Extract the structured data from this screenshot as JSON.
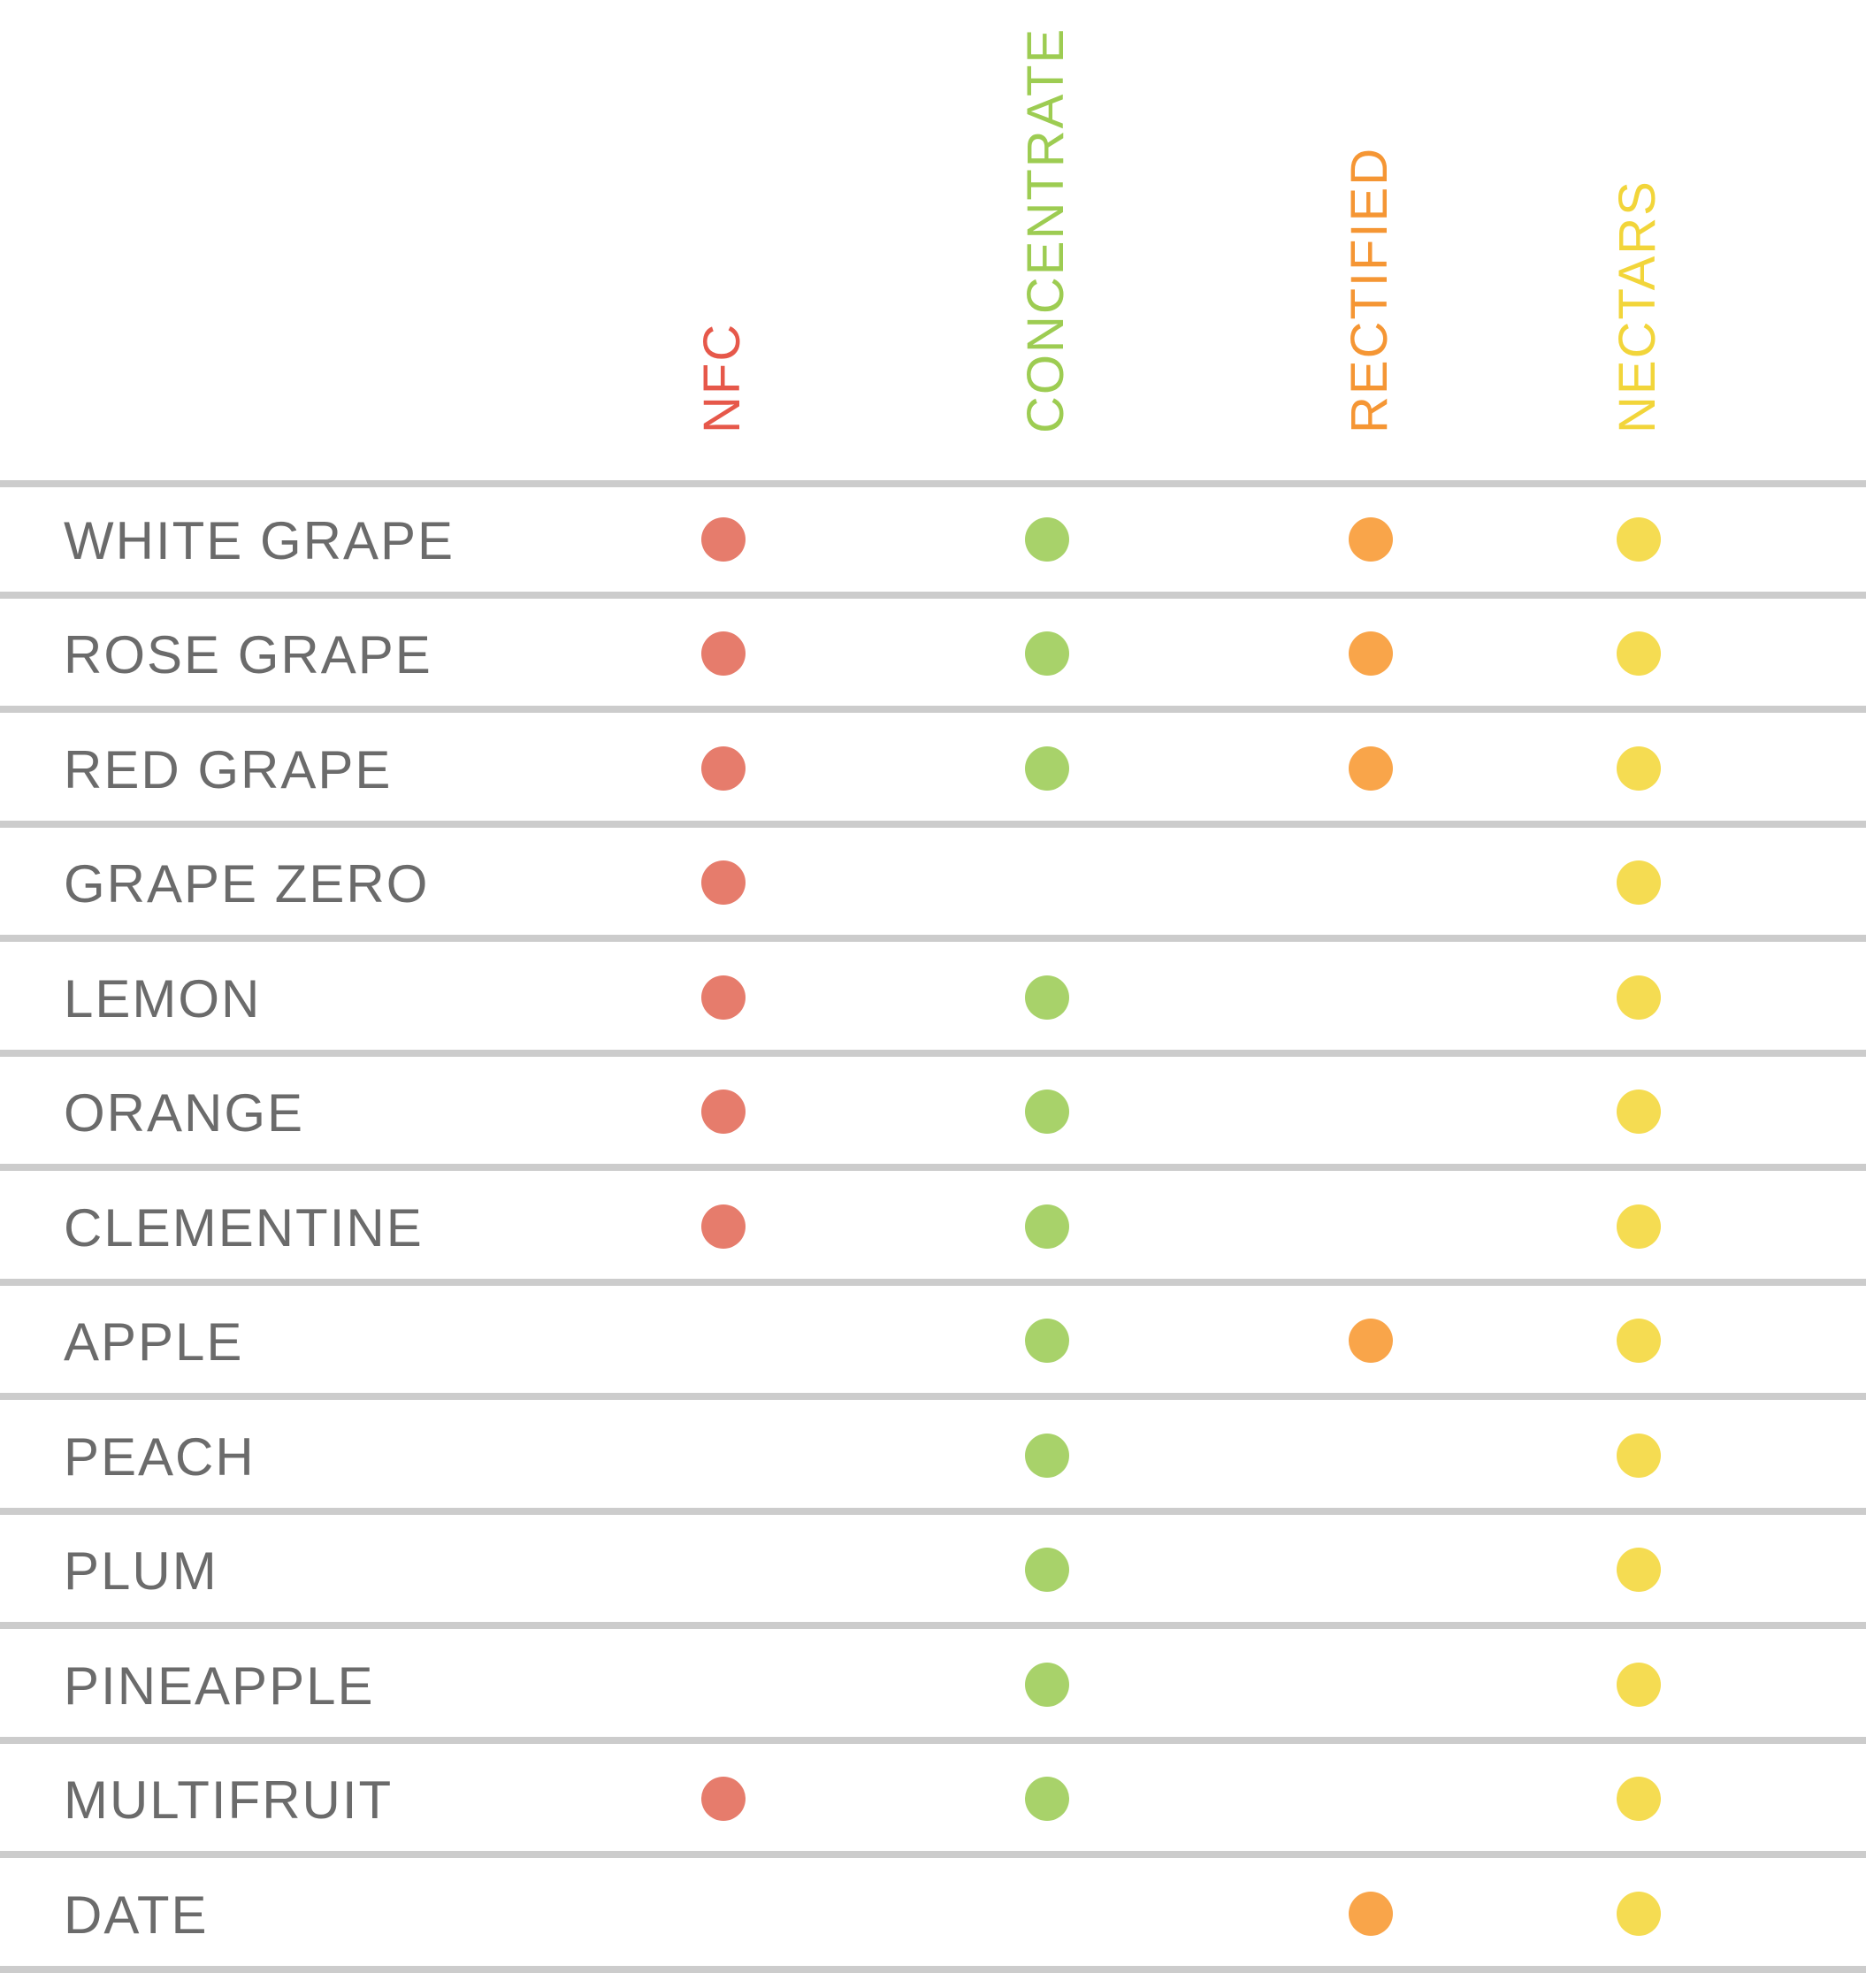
{
  "chart_data": {
    "type": "table",
    "columns": [
      {
        "name": "NFC",
        "color": "#e67c6c"
      },
      {
        "name": "CONCENTRATE",
        "color": "#a8d26a"
      },
      {
        "name": "RECTIFIED",
        "color": "#f9a54a"
      },
      {
        "name": "NECTARS",
        "color": "#f5dc52"
      }
    ],
    "header_colors": [
      "#e6584a",
      "#9dcc52",
      "#f59634",
      "#f2d53a"
    ],
    "rows": [
      {
        "label": "WHITE GRAPE",
        "values": [
          true,
          true,
          true,
          true
        ]
      },
      {
        "label": "ROSE GRAPE",
        "values": [
          true,
          true,
          true,
          true
        ]
      },
      {
        "label": "RED GRAPE",
        "values": [
          true,
          true,
          true,
          true
        ]
      },
      {
        "label": "GRAPE ZERO",
        "values": [
          true,
          false,
          false,
          true
        ]
      },
      {
        "label": "LEMON",
        "values": [
          true,
          true,
          false,
          true
        ]
      },
      {
        "label": "ORANGE",
        "values": [
          true,
          true,
          false,
          true
        ]
      },
      {
        "label": "CLEMENTINE",
        "values": [
          true,
          true,
          false,
          true
        ]
      },
      {
        "label": "APPLE",
        "values": [
          false,
          true,
          true,
          true
        ]
      },
      {
        "label": "PEACH",
        "values": [
          false,
          true,
          false,
          true
        ]
      },
      {
        "label": "PLUM",
        "values": [
          false,
          true,
          false,
          true
        ]
      },
      {
        "label": "PINEAPPLE",
        "values": [
          false,
          true,
          false,
          true
        ]
      },
      {
        "label": "MULTIFRUIT",
        "values": [
          true,
          true,
          false,
          true
        ]
      },
      {
        "label": "DATE",
        "values": [
          false,
          false,
          true,
          true
        ]
      }
    ],
    "rule_color": "#cccccc"
  }
}
